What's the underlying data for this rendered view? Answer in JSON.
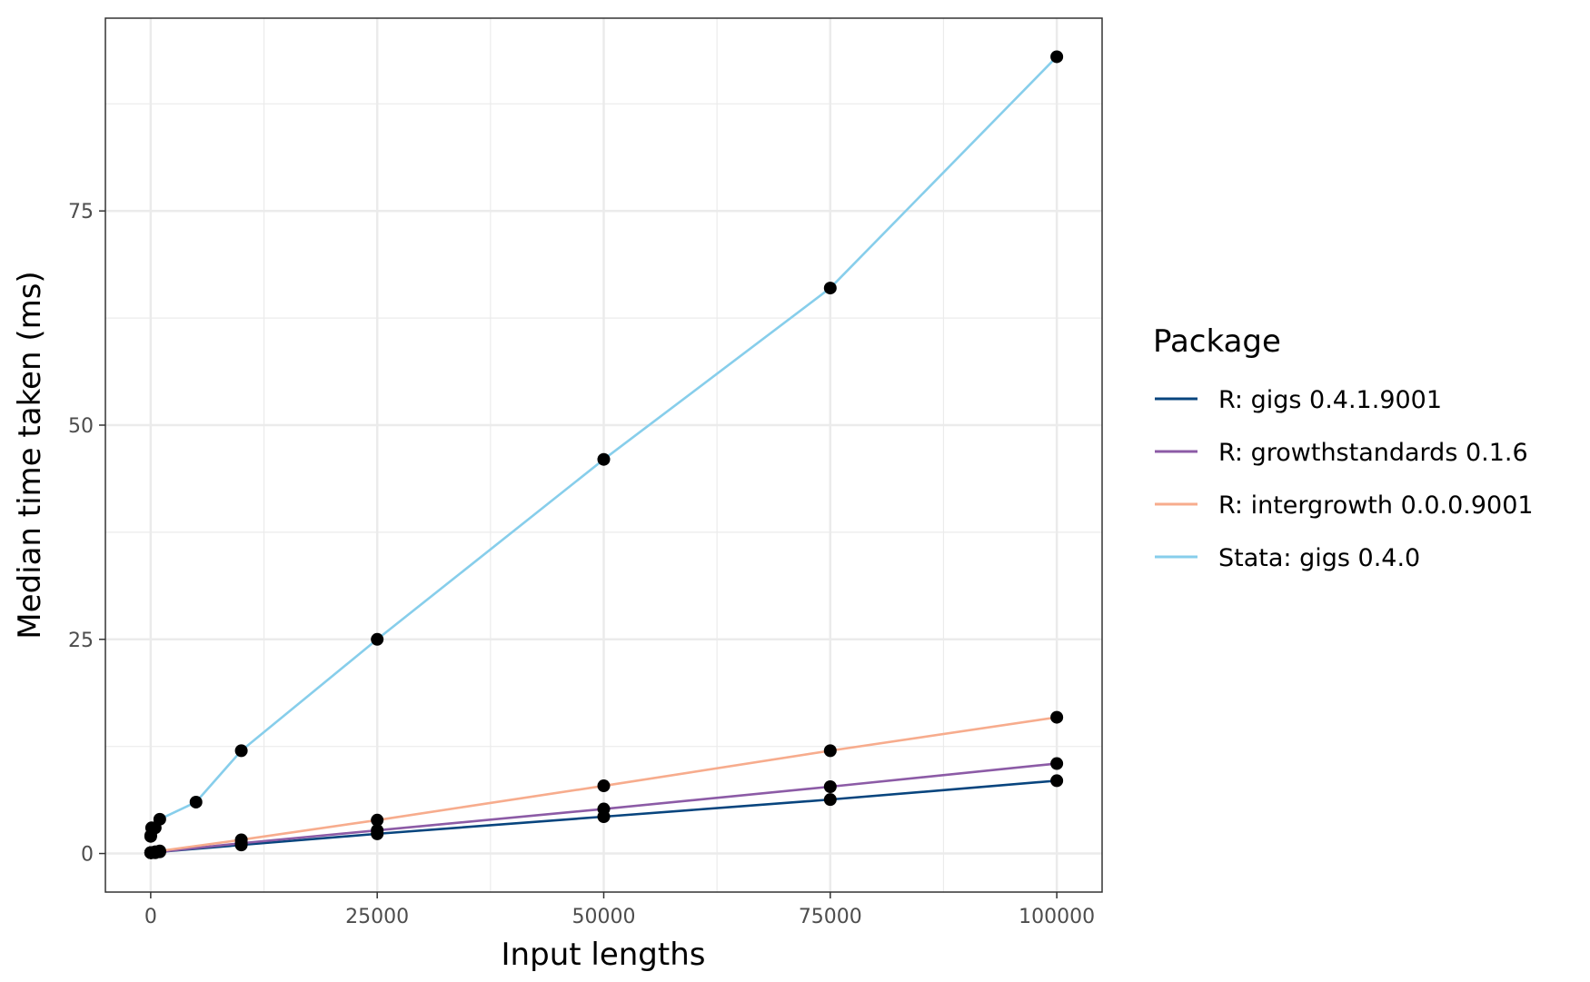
{
  "chart_data": {
    "type": "line",
    "xlabel": "Input lengths",
    "ylabel": "Median time taken (ms)",
    "xlim": [
      -5000,
      105000
    ],
    "ylim": [
      -4.5,
      97.5
    ],
    "x_ticks": [
      0,
      25000,
      50000,
      75000,
      100000
    ],
    "x_tick_labels": [
      "0",
      "25000",
      "50000",
      "75000",
      "100000"
    ],
    "y_ticks": [
      0,
      25,
      50,
      75
    ],
    "y_tick_labels": [
      "0",
      "25",
      "50",
      "75"
    ],
    "grid": true,
    "legend": {
      "title": "Package",
      "placement": "right"
    },
    "series": [
      {
        "name": "R: gigs 0.4.1.9001",
        "color": "#08457e",
        "x": [
          1,
          10,
          100,
          500,
          1000,
          10000,
          25000,
          50000,
          75000,
          100000
        ],
        "y": [
          0.1,
          0.1,
          0.1,
          0.1,
          0.2,
          1.0,
          2.3,
          4.3,
          6.3,
          8.5
        ]
      },
      {
        "name": "R: growthstandards 0.1.6",
        "color": "#8c5ba6",
        "x": [
          1,
          10,
          100,
          500,
          1000,
          10000,
          25000,
          50000,
          75000,
          100000
        ],
        "y": [
          0.1,
          0.1,
          0.1,
          0.1,
          0.2,
          1.2,
          2.7,
          5.2,
          7.8,
          10.5
        ]
      },
      {
        "name": "R: intergrowth 0.0.0.9001",
        "color": "#f7ac8d",
        "x": [
          1,
          10,
          100,
          500,
          1000,
          10000,
          25000,
          50000,
          75000,
          100000
        ],
        "y": [
          0.1,
          0.1,
          0.1,
          0.2,
          0.3,
          1.6,
          3.9,
          7.9,
          12.0,
          15.9
        ]
      },
      {
        "name": "Stata: gigs 0.4.0",
        "color": "#87ceeb",
        "x": [
          1,
          10,
          100,
          500,
          1000,
          5000,
          10000,
          25000,
          50000,
          75000,
          100000
        ],
        "y": [
          2.0,
          2.1,
          3.0,
          3.0,
          4.0,
          6.0,
          12.0,
          25.0,
          46.0,
          66.0,
          93.0
        ]
      }
    ]
  }
}
